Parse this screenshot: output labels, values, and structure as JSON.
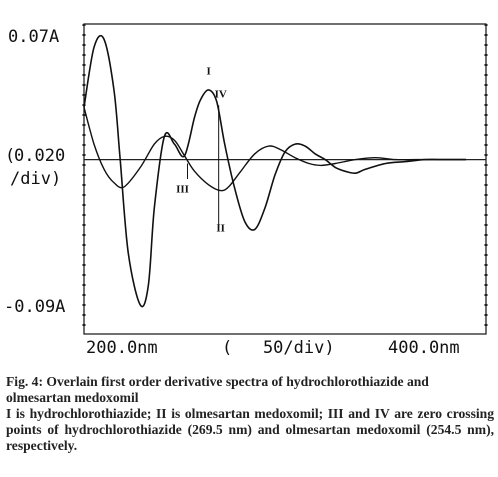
{
  "chart_data": {
    "type": "line",
    "xlim": [
      200,
      400
    ],
    "ylim": [
      -0.09,
      0.07
    ],
    "zero_value": 0,
    "labels": {
      "y_top": "0.07A",
      "y_mid_line1": "0.020",
      "y_mid_line2": "/div)",
      "y_bottom": "-0.09A",
      "x_left": "200.0nm",
      "x_mid": "(   50/div)",
      "x_right": "400.0nm"
    },
    "series": [
      {
        "x": [
          200,
          205,
          210,
          215,
          218,
          222,
          228,
          232,
          235,
          240,
          245,
          250,
          255,
          258,
          262,
          266,
          270,
          275,
          280,
          285,
          290,
          295,
          300,
          305,
          310,
          315,
          320,
          325,
          330,
          335,
          340,
          350,
          360,
          370,
          380,
          390
        ],
        "y": [
          0.027,
          0.058,
          0.062,
          0.035,
          0.0,
          -0.048,
          -0.075,
          -0.065,
          -0.025,
          0.012,
          0.008,
          0.002,
          0.022,
          0.031,
          0.036,
          0.03,
          0.008,
          -0.015,
          -0.032,
          -0.036,
          -0.025,
          -0.008,
          0.004,
          0.008,
          0.007,
          0.003,
          0.0,
          -0.004,
          -0.006,
          -0.007,
          -0.005,
          -0.002,
          -0.001,
          0.0,
          0.0,
          0.0
        ]
      },
      {
        "x": [
          200,
          205,
          210,
          215,
          220,
          228,
          235,
          240,
          245,
          250,
          255,
          262,
          268,
          272,
          278,
          285,
          292,
          298,
          305,
          312,
          318,
          325,
          335,
          345,
          355,
          365,
          375,
          390
        ],
        "y": [
          0.027,
          0.008,
          -0.005,
          -0.012,
          -0.014,
          -0.004,
          0.008,
          0.012,
          0.01,
          0.002,
          -0.006,
          -0.013,
          -0.016,
          -0.014,
          -0.006,
          0.003,
          0.007,
          0.005,
          0.001,
          -0.002,
          -0.003,
          -0.002,
          0.0,
          0.001,
          0.0,
          0.0,
          0.0,
          0.0
        ]
      }
    ],
    "annotations": [
      {
        "text": "I",
        "x": 262,
        "y": 0.044
      },
      {
        "text": "IV",
        "x": 268,
        "y": 0.032
      },
      {
        "text": "III",
        "x": 249,
        "y": -0.017
      },
      {
        "text": "II",
        "x": 268,
        "y": -0.037
      }
    ],
    "markers": [
      {
        "x": 251.5,
        "y_from": -0.002,
        "y_to": -0.01
      },
      {
        "x": 267,
        "y_from": 0.028,
        "y_to": -0.034
      }
    ]
  },
  "caption": {
    "title": "Fig. 4: Overlain first order derivative spectra of hydrochlorothiazide and olmesartan medoxomil",
    "body": "I is hydrochlorothiazide; II is olmesartan medoxomil; III and IV are zero crossing points of hydrochlorothiazide (269.5 nm) and olmesartan medoxomil (254.5 nm), respectively."
  }
}
